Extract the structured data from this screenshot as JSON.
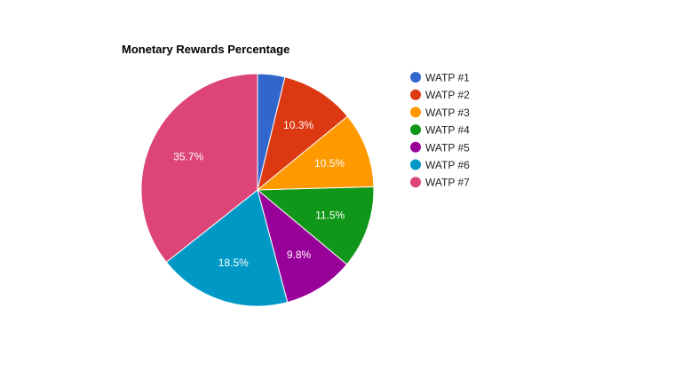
{
  "chart_data": {
    "type": "pie",
    "title": "Monetary Rewards Percentage",
    "legend_position": "right",
    "slices": [
      {
        "label": "WATP #1",
        "value": 3.8,
        "display": "",
        "color": "#3366cc"
      },
      {
        "label": "WATP #2",
        "value": 10.3,
        "display": "10.3%",
        "color": "#dc3912"
      },
      {
        "label": "WATP #3",
        "value": 10.5,
        "display": "10.5%",
        "color": "#ff9900"
      },
      {
        "label": "WATP #4",
        "value": 11.5,
        "display": "11.5%",
        "color": "#109618"
      },
      {
        "label": "WATP #5",
        "value": 9.8,
        "display": "9.8%",
        "color": "#990099"
      },
      {
        "label": "WATP #6",
        "value": 18.5,
        "display": "18.5%",
        "color": "#0099c6"
      },
      {
        "label": "WATP #7",
        "value": 35.7,
        "display": "35.7%",
        "color": "#dd4477"
      }
    ]
  }
}
